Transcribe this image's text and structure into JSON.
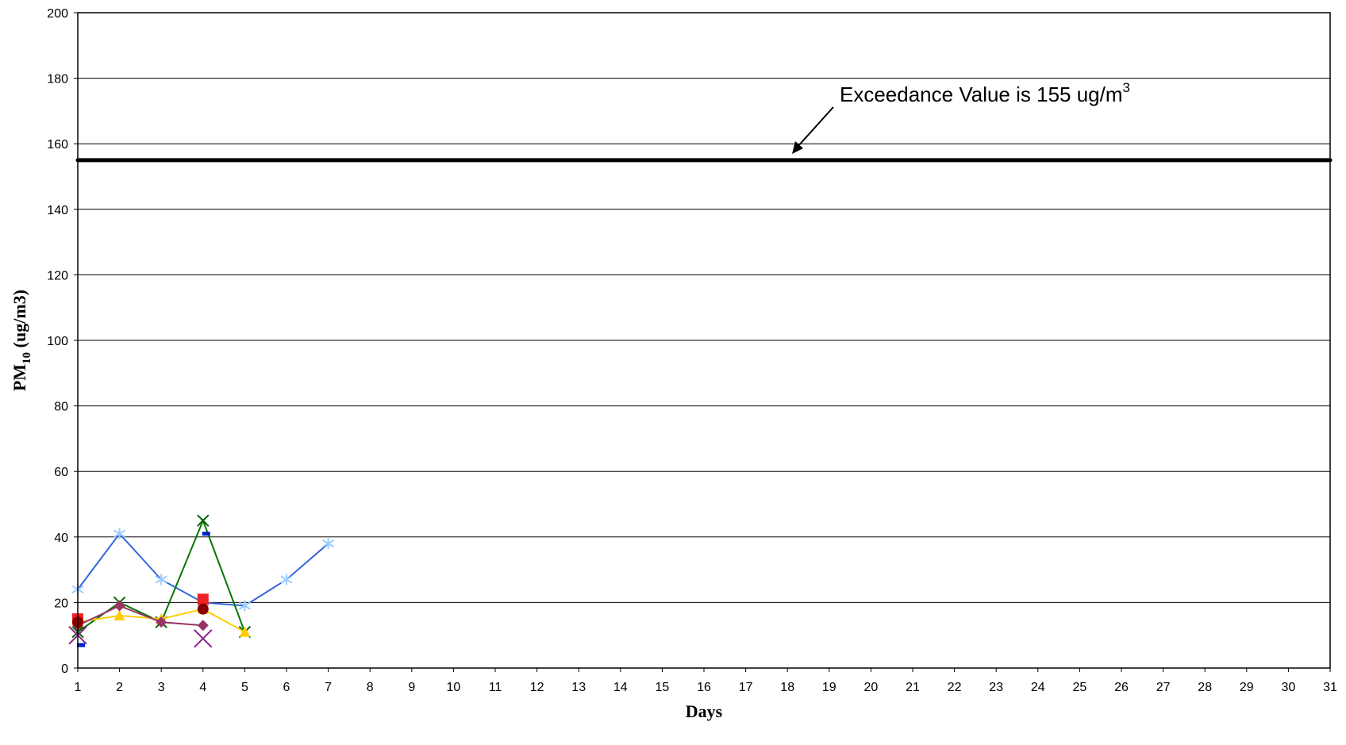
{
  "chart_data": {
    "type": "line",
    "title": "",
    "xlabel": "Days",
    "ylabel": {
      "main": "PM",
      "sub": "10",
      "rest": " (ug/m3)"
    },
    "x": [
      1,
      2,
      3,
      4,
      5,
      6,
      7,
      8,
      9,
      10,
      11,
      12,
      13,
      14,
      15,
      16,
      17,
      18,
      19,
      20,
      21,
      22,
      23,
      24,
      25,
      26,
      27,
      28,
      29,
      30,
      31
    ],
    "xlim": [
      1,
      31
    ],
    "ylim": [
      0,
      200
    ],
    "yticks": [
      0,
      20,
      40,
      60,
      80,
      100,
      120,
      140,
      160,
      180,
      200
    ],
    "grid": true,
    "legend": "none",
    "threshold": {
      "value": 155,
      "color": "#000000",
      "label": {
        "text": "Exceedance Value is 155 ug/m",
        "sup": "3"
      }
    },
    "series": [
      {
        "x": [
          1,
          2,
          3,
          4,
          5,
          6,
          7
        ],
        "values": [
          24,
          41,
          27,
          20,
          19,
          27,
          38
        ],
        "color": "#3366dd",
        "marker": "asterisk",
        "markerColor": "#99ccff"
      },
      {
        "x": [
          1,
          2,
          3,
          4,
          5
        ],
        "values": [
          11,
          20,
          14,
          45,
          11
        ],
        "color": "#007700",
        "marker": "x",
        "markerColor": "#006600"
      },
      {
        "x": [
          1,
          2,
          3,
          4,
          5
        ],
        "values": [
          14,
          16,
          15,
          18,
          11
        ],
        "color": "#ffcc00",
        "marker": "triangle",
        "markerColor": "#ffcc00"
      },
      {
        "x": [
          1,
          2,
          3,
          4
        ],
        "values": [
          13,
          19,
          14,
          13
        ],
        "color": "#993366",
        "marker": "diamond",
        "markerColor": "#993366"
      },
      {
        "x": [
          1,
          4
        ],
        "values": [
          15,
          21
        ],
        "color": "none",
        "marker": "square",
        "markerColor": "#ee2222"
      },
      {
        "x": [
          1,
          4
        ],
        "values": [
          14,
          18
        ],
        "color": "none",
        "marker": "circle",
        "markerColor": "#880000"
      },
      {
        "x": [
          1,
          4
        ],
        "values": [
          7,
          41
        ],
        "color": "none",
        "marker": "dash",
        "markerColor": "#0022cc"
      },
      {
        "x": [
          1,
          4
        ],
        "values": [
          10,
          9
        ],
        "color": "none",
        "marker": "x-large",
        "markerColor": "#882288"
      }
    ]
  }
}
